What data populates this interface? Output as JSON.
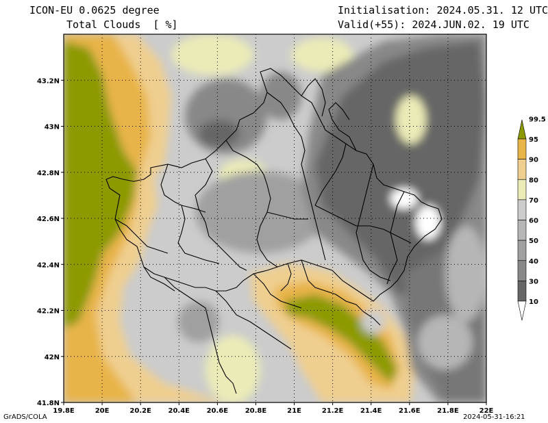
{
  "header": {
    "model_line": "ICON-EU 0.0625 degree",
    "variable_line": "Total Clouds  [ %]",
    "init_line": "Initialisation: 2024.05.31. 12 UTC",
    "valid_line": "Valid(+55): 2024.JUN.02. 19 UTC"
  },
  "footer": {
    "credit": "GrADS/COLA",
    "timestamp": "2024-05-31-16:21"
  },
  "axes": {
    "lon_ticks": [
      "19.8E",
      "20E",
      "20.2E",
      "20.4E",
      "20.6E",
      "20.8E",
      "21E",
      "21.2E",
      "21.4E",
      "21.6E",
      "21.8E",
      "22E"
    ],
    "lat_ticks": [
      "41.8N",
      "42N",
      "42.2N",
      "42.4N",
      "42.6N",
      "42.8N",
      "43N",
      "43.2N"
    ],
    "lon_range": [
      19.8,
      22.0
    ],
    "lat_range": [
      41.8,
      43.4
    ]
  },
  "colorbar": {
    "levels": [
      "10",
      "30",
      "40",
      "50",
      "60",
      "70",
      "80",
      "90",
      "95",
      "99.5"
    ],
    "colors": [
      "#ffffff",
      "#666666",
      "#888888",
      "#a0a0a0",
      "#b6b6b6",
      "#cccccc",
      "#ebebb8",
      "#efcf90",
      "#e8b448",
      "#8c9a00"
    ]
  }
}
